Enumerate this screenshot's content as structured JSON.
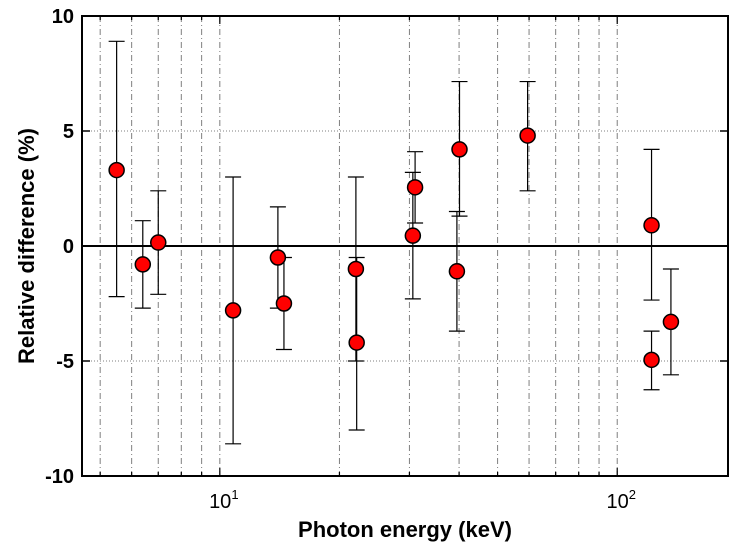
{
  "chart_data": {
    "type": "scatter",
    "title": "",
    "xlabel": "Photon energy (keV)",
    "ylabel": "Relative difference (%)",
    "x_scale": "log",
    "xlim": [
      4.5,
      190
    ],
    "ylim": [
      -10,
      10
    ],
    "grid": true,
    "y_ticks": [
      10,
      5,
      0,
      -5,
      -10
    ],
    "y_tick_labels": [
      "10",
      "5",
      "0",
      "-5",
      "-10"
    ],
    "x_ticks": [
      {
        "value": 10,
        "base": "10",
        "exp": "1"
      },
      {
        "value": 100,
        "base": "10",
        "exp": "2"
      }
    ],
    "marker_color": "#ff0000",
    "points": [
      {
        "x": 5.5,
        "y": 3.3,
        "y_low": -2.2,
        "y_high": 8.9
      },
      {
        "x": 6.4,
        "y": -0.8,
        "y_low": -2.7,
        "y_high": 1.1
      },
      {
        "x": 7.0,
        "y": 0.15,
        "y_low": -2.1,
        "y_high": 2.4
      },
      {
        "x": 10.8,
        "y": -2.8,
        "y_low": -8.6,
        "y_high": 3.0
      },
      {
        "x": 14.0,
        "y": -0.5,
        "y_low": -2.7,
        "y_high": 1.7
      },
      {
        "x": 14.5,
        "y": -2.5,
        "y_low": -4.5,
        "y_high": -0.5
      },
      {
        "x": 22.0,
        "y": -1.0,
        "y_low": -5.0,
        "y_high": 3.0
      },
      {
        "x": 22.1,
        "y": -4.2,
        "y_low": -8.0,
        "y_high": -0.5
      },
      {
        "x": 30.6,
        "y": 0.45,
        "y_low": -2.3,
        "y_high": 3.2
      },
      {
        "x": 31.0,
        "y": 2.55,
        "y_low": 1.0,
        "y_high": 4.1
      },
      {
        "x": 39.5,
        "y": -1.1,
        "y_low": -3.7,
        "y_high": 1.5
      },
      {
        "x": 40.1,
        "y": 4.2,
        "y_low": 1.3,
        "y_high": 7.15
      },
      {
        "x": 59.5,
        "y": 4.8,
        "y_low": 2.4,
        "y_high": 7.15
      },
      {
        "x": 122.0,
        "y": 0.9,
        "y_low": -2.35,
        "y_high": 4.2
      },
      {
        "x": 122.0,
        "y": -4.95,
        "y_low": -6.25,
        "y_high": -3.7
      },
      {
        "x": 136.5,
        "y": -3.3,
        "y_low": -5.6,
        "y_high": -1.0
      }
    ]
  }
}
